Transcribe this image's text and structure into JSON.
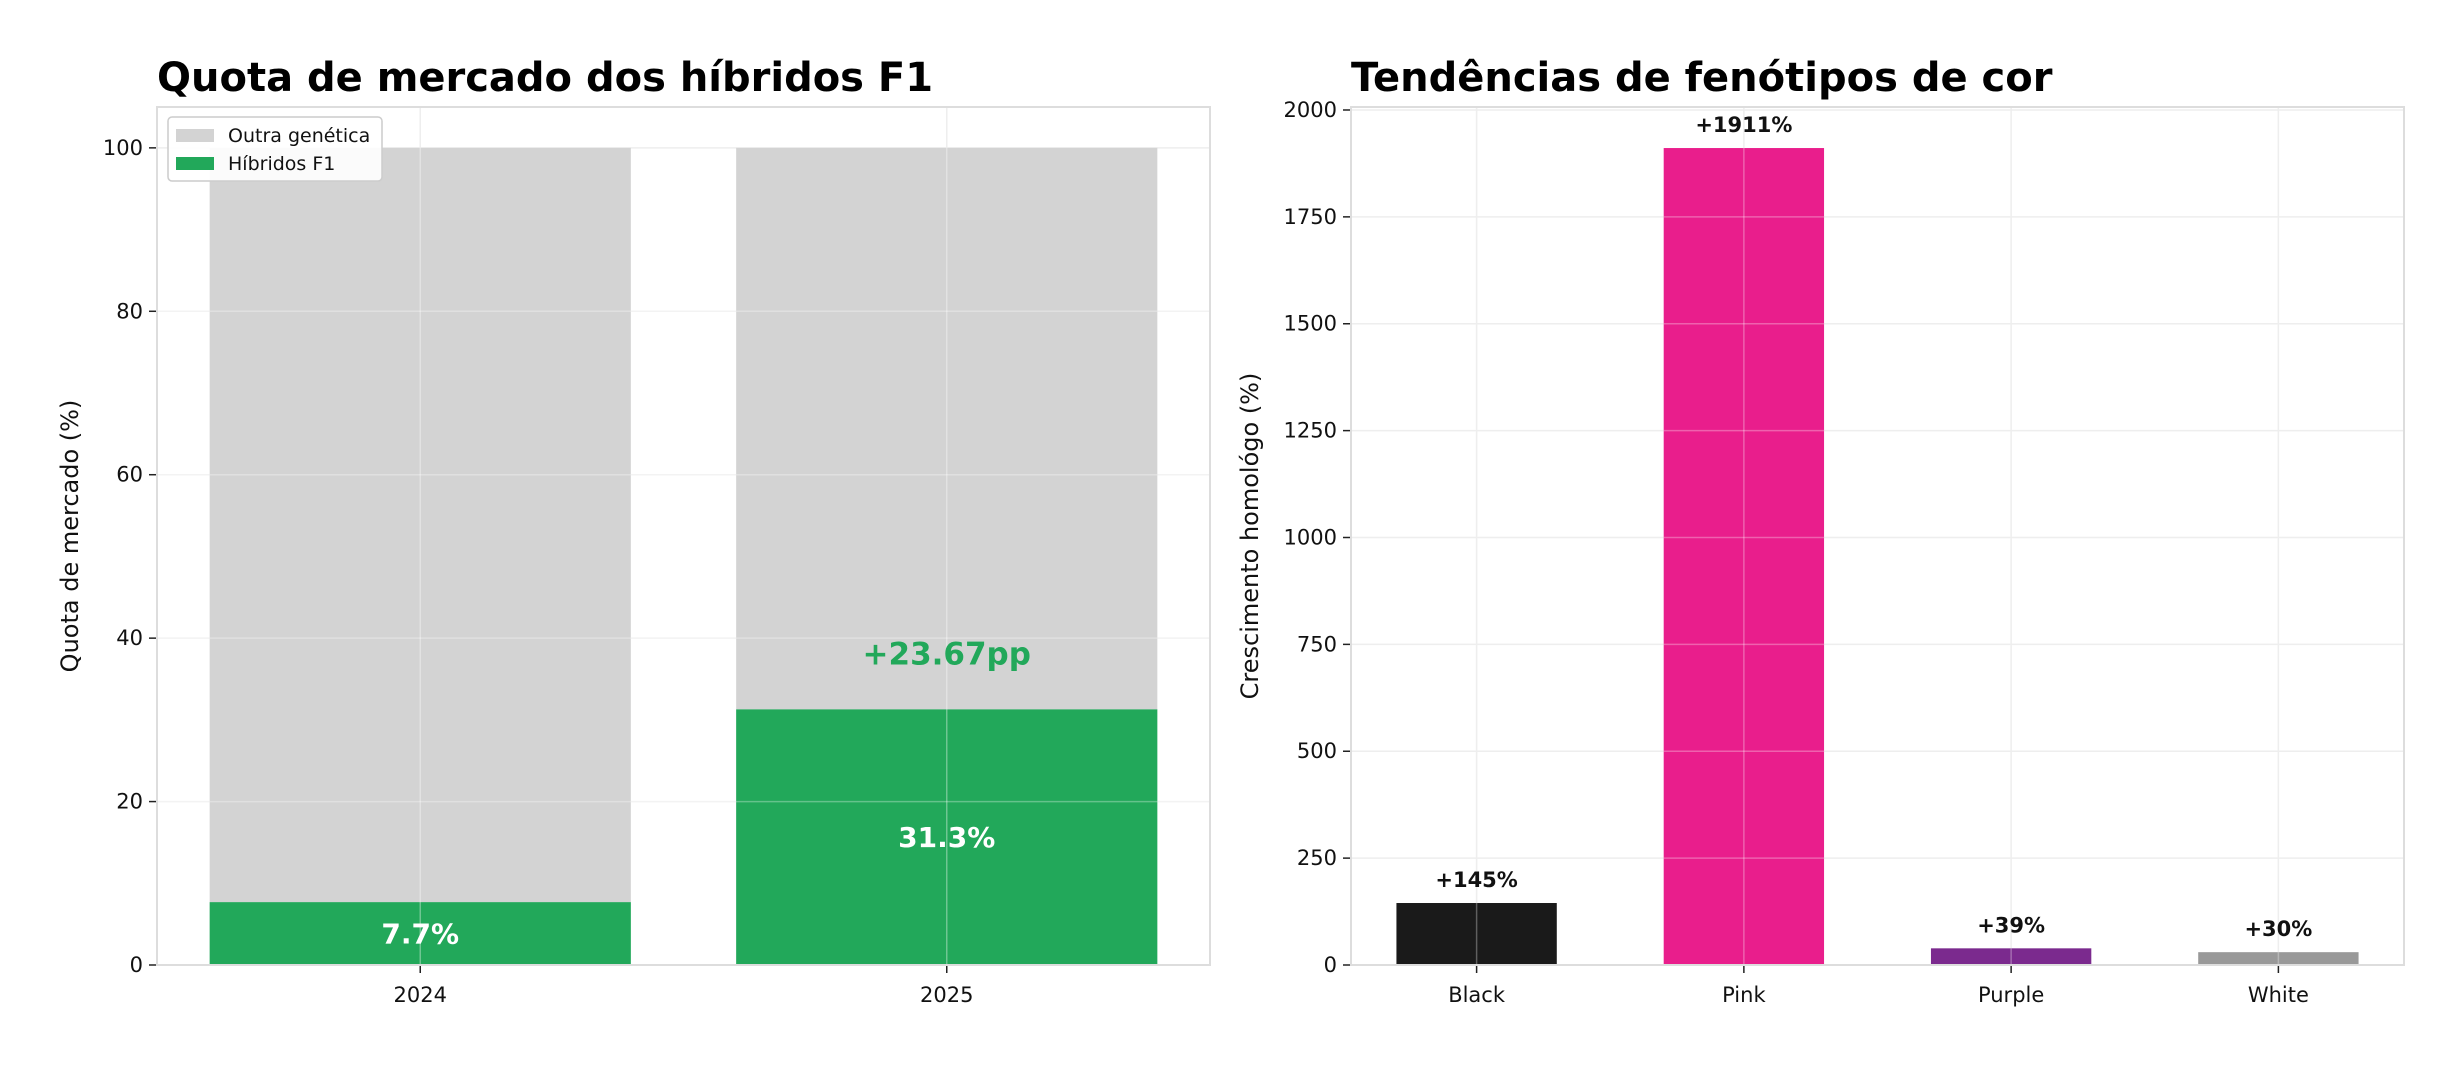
{
  "colors": {
    "green": "#22a85a",
    "gray": "#d3d3d3",
    "black": "#1a1a1a",
    "pink": "#e91e8c",
    "purple": "#7b2a8e",
    "white_bar": "#999999"
  },
  "chart_data": [
    {
      "type": "bar",
      "stacked": true,
      "title": "Quota de mercado dos híbridos F1",
      "xlabel": "",
      "ylabel": "Quota de mercado (%)",
      "categories": [
        "2024",
        "2025"
      ],
      "series": [
        {
          "name": "Híbridos F1",
          "values": [
            7.7,
            31.3
          ],
          "color": "#22a85a"
        },
        {
          "name": "Outra genética",
          "values": [
            92.3,
            68.7
          ],
          "color": "#d3d3d3"
        }
      ],
      "data_labels": [
        "7.7%",
        "31.3%"
      ],
      "annotation": {
        "text": "+23.67pp",
        "category": "2025",
        "y": 38
      },
      "yticks": [
        0,
        20,
        40,
        60,
        80,
        100
      ],
      "ylim": [
        0,
        105
      ],
      "xlim": [
        -0.5,
        1.5
      ],
      "grid": true,
      "legend": {
        "placement": "top-left",
        "entries": [
          "Outra genética",
          "Híbridos F1"
        ]
      }
    },
    {
      "type": "bar",
      "title": "Tendências de fenótipos de cor",
      "xlabel": "",
      "ylabel": "Crescimento homológo (%)",
      "categories": [
        "Black",
        "Pink",
        "Purple",
        "White"
      ],
      "values": [
        145,
        1911,
        39,
        30
      ],
      "colors": [
        "#1a1a1a",
        "#e91e8c",
        "#7b2a8e",
        "#999999"
      ],
      "data_labels": [
        "+145%",
        "+1911%",
        "+39%",
        "+30%"
      ],
      "yticks": [
        0,
        250,
        500,
        750,
        1000,
        1250,
        1500,
        1750,
        2000
      ],
      "ylim": [
        0,
        2007
      ],
      "xlim": [
        -0.47,
        3.47
      ],
      "grid": true
    }
  ]
}
